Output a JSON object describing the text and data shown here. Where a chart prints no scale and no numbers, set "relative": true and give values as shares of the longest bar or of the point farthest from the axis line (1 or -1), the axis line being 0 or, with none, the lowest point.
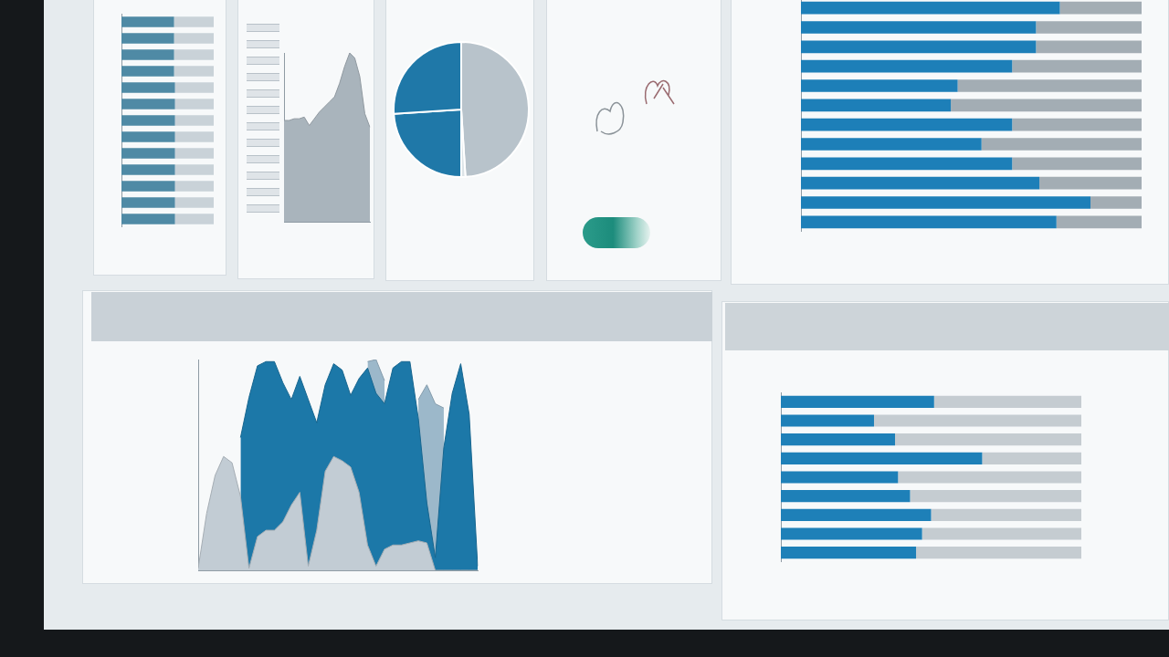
{
  "chart_data": [
    {
      "type": "bar",
      "orientation": "horizontal",
      "stacked": true,
      "relative": true,
      "categories": [
        null,
        null,
        null,
        null,
        null,
        null,
        null,
        null,
        null,
        null,
        null,
        null,
        null
      ],
      "series": [
        {
          "color": "#4f8aa5",
          "values": [
            0.57,
            0.57,
            0.57,
            0.57,
            0.58,
            0.58,
            0.58,
            0.58,
            0.58,
            0.58,
            0.58,
            0.58,
            0.58
          ]
        },
        {
          "color": "#c9d2d8",
          "values": [
            0.43,
            0.43,
            0.43,
            0.43,
            0.42,
            0.42,
            0.42,
            0.42,
            0.42,
            0.42,
            0.42,
            0.42,
            0.42
          ]
        }
      ]
    },
    {
      "type": "area",
      "relative": true,
      "categories": [
        null,
        null,
        null,
        null,
        null,
        null,
        null,
        null,
        null,
        null,
        null,
        null,
        null,
        null,
        null,
        null,
        null,
        null
      ],
      "series": [
        {
          "color": "#a9b4bc",
          "values": [
            0.6,
            0.6,
            0.61,
            0.61,
            0.62,
            0.57,
            0.61,
            0.65,
            0.68,
            0.71,
            0.74,
            0.82,
            0.92,
            1.0,
            0.97,
            0.86,
            0.64,
            0.56
          ]
        }
      ]
    },
    {
      "type": "pie",
      "categories": [
        null,
        null,
        null,
        null
      ],
      "values": [
        49,
        1,
        24,
        26
      ],
      "colors": [
        "#b8c3cb",
        "#dde4e8",
        "#1f78a8",
        "#1f78a8"
      ]
    },
    {
      "type": "bar",
      "orientation": "horizontal",
      "stacked": true,
      "relative": true,
      "categories": [
        null,
        null,
        null,
        null,
        null,
        null,
        null,
        null,
        null,
        null,
        null,
        null
      ],
      "series": [
        {
          "color": "#1d7fb8",
          "values": [
            0.76,
            0.69,
            0.69,
            0.62,
            0.46,
            0.44,
            0.62,
            0.53,
            0.62,
            0.7,
            0.85,
            0.75
          ]
        },
        {
          "color": "#a3adb4",
          "values": [
            0.24,
            0.31,
            0.31,
            0.38,
            0.54,
            0.56,
            0.38,
            0.47,
            0.38,
            0.3,
            0.15,
            0.25
          ]
        }
      ]
    },
    {
      "type": "area",
      "relative": true,
      "categories": [
        null,
        null,
        null,
        null,
        null,
        null,
        null,
        null,
        null,
        null,
        null,
        null,
        null,
        null,
        null,
        null,
        null,
        null,
        null,
        null,
        null,
        null,
        null,
        null,
        null,
        null,
        null,
        null,
        null,
        null,
        null,
        null,
        null,
        null
      ],
      "series": [
        {
          "color": "#c2ccd4",
          "values": [
            0.01,
            0.27,
            0.45,
            0.54,
            0.51,
            0.35,
            0.01,
            0.16,
            0.19,
            0.19,
            0.23,
            0.31,
            0.37,
            0.02,
            0.19,
            0.47,
            0.54,
            0.52,
            0.49,
            0.37,
            0.12,
            0.02,
            0.1,
            0.12,
            0.12,
            0.13,
            0.14,
            0.13,
            0,
            0,
            0,
            0,
            0,
            0
          ]
        },
        {
          "color": "#1c78a8",
          "values": [
            null,
            null,
            null,
            null,
            null,
            0.63,
            0.82,
            0.97,
            0.99,
            0.99,
            0.89,
            0.81,
            0.92,
            0.81,
            0.7,
            0.88,
            0.98,
            0.95,
            0.83,
            0.91,
            0.96,
            0.84,
            0.79,
            0.96,
            0.99,
            0.99,
            0.72,
            0.32,
            0.06,
            0.58,
            0.84,
            0.98,
            0.74,
            0.02
          ]
        },
        {
          "color": "#9cb8ca",
          "values": [
            null,
            null,
            null,
            null,
            null,
            null,
            null,
            null,
            null,
            null,
            null,
            null,
            null,
            null,
            null,
            null,
            null,
            null,
            null,
            null,
            0.99,
            1.0,
            0.9,
            null,
            null,
            null,
            0.81,
            0.88,
            0.79,
            0.77,
            null,
            null,
            null,
            null
          ]
        }
      ]
    },
    {
      "type": "bar",
      "orientation": "horizontal",
      "stacked": true,
      "relative": true,
      "categories": [
        null,
        null,
        null,
        null,
        null,
        null,
        null,
        null,
        null
      ],
      "series": [
        {
          "color": "#1e80b8",
          "values": [
            0.51,
            0.31,
            0.38,
            0.67,
            0.39,
            0.43,
            0.5,
            0.47,
            0.45
          ]
        },
        {
          "color": "#c5ccd1",
          "values": [
            0.49,
            0.69,
            0.62,
            0.33,
            0.61,
            0.57,
            0.5,
            0.53,
            0.55
          ]
        }
      ]
    }
  ]
}
